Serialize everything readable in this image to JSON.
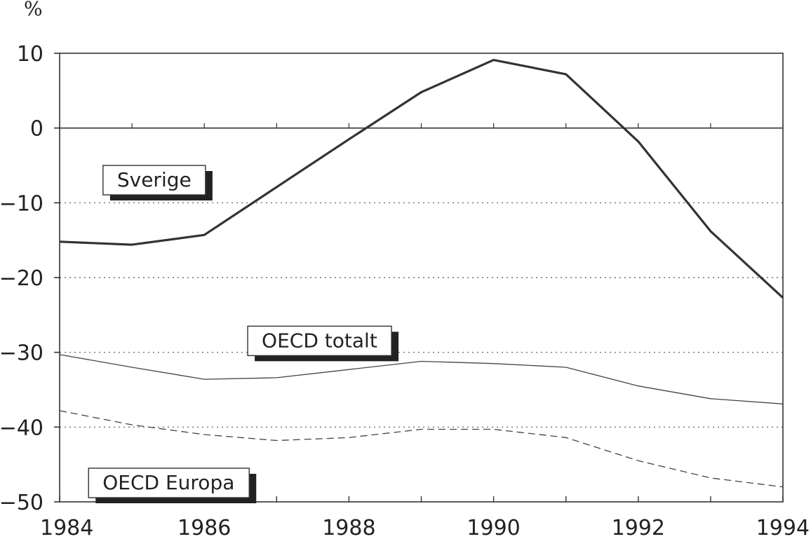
{
  "chart_data": {
    "type": "line",
    "title": "",
    "xlabel": "",
    "ylabel": "%",
    "xlim": [
      1984,
      1994
    ],
    "ylim": [
      -50,
      10
    ],
    "x_ticks": [
      1984,
      1986,
      1988,
      1990,
      1992,
      1994
    ],
    "y_ticks": [
      10,
      0,
      -10,
      -20,
      -30,
      -40,
      -50
    ],
    "x_tick_labels": [
      "1984",
      "1986",
      "1988",
      "1990",
      "1992",
      "1994"
    ],
    "y_tick_labels": [
      "10",
      "0",
      "−10",
      "−20",
      "−30",
      "−40",
      "−50"
    ],
    "grid": "horizontal dotted at -10 to -40, solid zero line",
    "x": [
      1984,
      1985,
      1986,
      1987,
      1988,
      1989,
      1990,
      1991,
      1992,
      1993,
      1994
    ],
    "series": [
      {
        "name": "Sverige",
        "style": "solid-thick",
        "color": "#333333",
        "values": [
          -15.2,
          -15.6,
          -14.3,
          -7.9,
          -1.5,
          4.8,
          9.1,
          7.2,
          -1.8,
          -13.8,
          -22.7
        ],
        "legend_pos": [
          1984.6,
          -5
        ]
      },
      {
        "name": "OECD totalt",
        "style": "solid-thin",
        "color": "#444444",
        "values": [
          -30.3,
          -32.0,
          -33.6,
          -33.4,
          -32.3,
          -31.2,
          -31.5,
          -32.0,
          -34.5,
          -36.2,
          -36.9
        ],
        "legend_pos": [
          1986.6,
          -26.5
        ]
      },
      {
        "name": "OECD Europa",
        "style": "dashed",
        "color": "#444444",
        "values": [
          -37.8,
          -39.7,
          -41.0,
          -41.8,
          -41.4,
          -40.3,
          -40.3,
          -41.4,
          -44.5,
          -46.8,
          -48.0
        ],
        "legend_pos": [
          1984.4,
          -45.5
        ]
      }
    ]
  }
}
